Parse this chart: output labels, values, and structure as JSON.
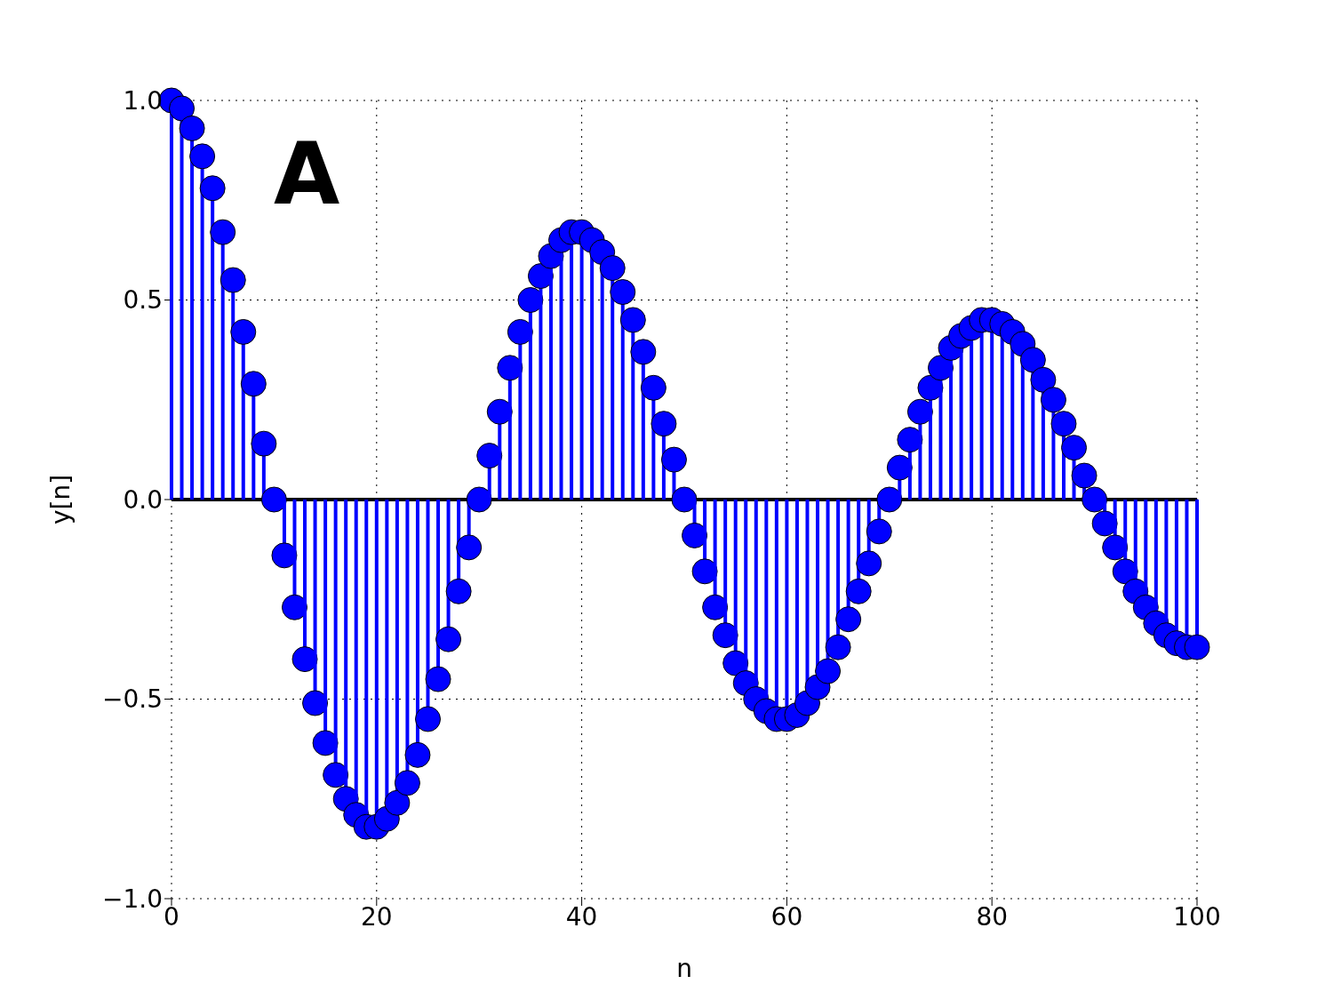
{
  "chart_data": {
    "type": "lollipop",
    "xlabel": "n",
    "ylabel": "y[n]",
    "annotations": [
      "A"
    ],
    "x": [
      0,
      1,
      2,
      3,
      4,
      5,
      6,
      7,
      8,
      9,
      10,
      11,
      12,
      13,
      14,
      15,
      16,
      17,
      18,
      19,
      20,
      21,
      22,
      23,
      24,
      25,
      26,
      27,
      28,
      29,
      30,
      31,
      32,
      33,
      34,
      35,
      36,
      37,
      38,
      39,
      40,
      41,
      42,
      43,
      44,
      45,
      46,
      47,
      48,
      49,
      50,
      51,
      52,
      53,
      54,
      55,
      56,
      57,
      58,
      59,
      60,
      61,
      62,
      63,
      64,
      65,
      66,
      67,
      68,
      69,
      70,
      71,
      72,
      73,
      74,
      75,
      76,
      77,
      78,
      79,
      80,
      81,
      82,
      83,
      84,
      85,
      86,
      87,
      88,
      89,
      90,
      91,
      92,
      93,
      94,
      95,
      96,
      97,
      98,
      99,
      100
    ],
    "series": [
      {
        "color": "#0000ff",
        "values": [
          1.0,
          0.98,
          0.93,
          0.86,
          0.78,
          0.67,
          0.55,
          0.42,
          0.29,
          0.14,
          0,
          -0.14,
          -0.27,
          -0.4,
          -0.51,
          -0.61,
          -0.69,
          -0.75,
          -0.79,
          -0.82,
          -0.82,
          -0.8,
          -0.76,
          -0.71,
          -0.64,
          -0.55,
          -0.45,
          -0.35,
          -0.23,
          -0.12,
          0,
          0.11,
          0.22,
          0.33,
          0.42,
          0.5,
          0.56,
          0.61,
          0.65,
          0.67,
          0.67,
          0.65,
          0.62,
          0.58,
          0.52,
          0.45,
          0.37,
          0.28,
          0.19,
          0.1,
          0,
          -0.09,
          -0.18,
          -0.27,
          -0.34,
          -0.41,
          -0.46,
          -0.5,
          -0.53,
          -0.55,
          -0.55,
          -0.54,
          -0.51,
          -0.47,
          -0.43,
          -0.37,
          -0.3,
          -0.23,
          -0.16,
          -0.08,
          0,
          0.08,
          0.15,
          0.22,
          0.28,
          0.33,
          0.38,
          0.41,
          0.43,
          0.45,
          0.45,
          0.44,
          0.42,
          0.39,
          0.35,
          0.3,
          0.25,
          0.19,
          0.13,
          0.06,
          0,
          -0.06,
          -0.12,
          -0.18,
          -0.23,
          -0.27,
          -0.31,
          -0.34,
          -0.36,
          -0.37,
          -0.37
        ]
      }
    ],
    "xlim": [
      0,
      100
    ],
    "xticks": [
      0,
      20,
      40,
      60,
      80,
      100
    ],
    "ylim": [
      -1,
      1
    ],
    "yticks": [
      {
        "value": -1,
        "label": "−1.0"
      },
      {
        "value": -0.5,
        "label": "−0.5"
      },
      {
        "value": 0,
        "label": "0.0"
      },
      {
        "value": 0.5,
        "label": "0.5"
      },
      {
        "value": 1,
        "label": "1.0"
      }
    ],
    "ref_lines": [
      {
        "axis": "y",
        "value": 0,
        "color": "#000000"
      }
    ],
    "grid": true,
    "marker": "circle"
  }
}
